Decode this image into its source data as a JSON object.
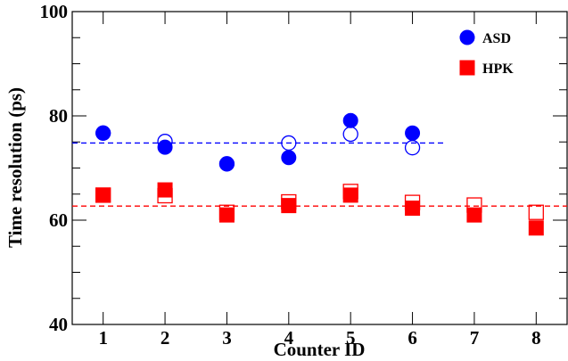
{
  "chart_data": {
    "type": "scatter",
    "xlabel": "Counter ID",
    "ylabel": "Time resolution (ps)",
    "xlim": [
      0.5,
      8.5
    ],
    "ylim": [
      40,
      100
    ],
    "x_ticks": [
      1,
      2,
      3,
      4,
      5,
      6,
      7,
      8
    ],
    "y_ticks": [
      40,
      60,
      80,
      100
    ],
    "grid": false,
    "legend_placement": "top-right",
    "series": [
      {
        "name": "ASD",
        "marker": "circle-filled",
        "color": "#0000ff",
        "x": [
          1,
          2,
          3,
          4,
          5,
          6
        ],
        "y": [
          76.7,
          74.0,
          70.8,
          72.0,
          79.1,
          76.7
        ]
      },
      {
        "name": "",
        "marker": "circle-open",
        "color": "#0000ff",
        "x": [
          1,
          2,
          3,
          4,
          5,
          6
        ],
        "y": [
          76.7,
          75.1,
          70.8,
          74.8,
          76.5,
          73.9
        ]
      },
      {
        "name": "HPK",
        "marker": "square-filled",
        "color": "#ff0000",
        "x": [
          1,
          2,
          3,
          4,
          5,
          6,
          7,
          8
        ],
        "y": [
          64.8,
          65.8,
          61.0,
          62.8,
          64.8,
          62.3,
          61.0,
          58.5
        ]
      },
      {
        "name": "",
        "marker": "square-open",
        "color": "#ff0000",
        "x": [
          1,
          2,
          3,
          4,
          5,
          6,
          7,
          8
        ],
        "y": [
          64.8,
          64.7,
          61.5,
          63.5,
          65.5,
          63.4,
          62.9,
          61.5
        ]
      }
    ],
    "reference_lines": [
      {
        "series": "ASD",
        "y": 74.8,
        "x_start": 0.5,
        "x_end": 6.5,
        "color": "#0000ff",
        "style": "dashed"
      },
      {
        "series": "HPK",
        "y": 62.7,
        "x_start": 0.5,
        "x_end": 8.5,
        "color": "#ff0000",
        "style": "dashed"
      }
    ]
  }
}
